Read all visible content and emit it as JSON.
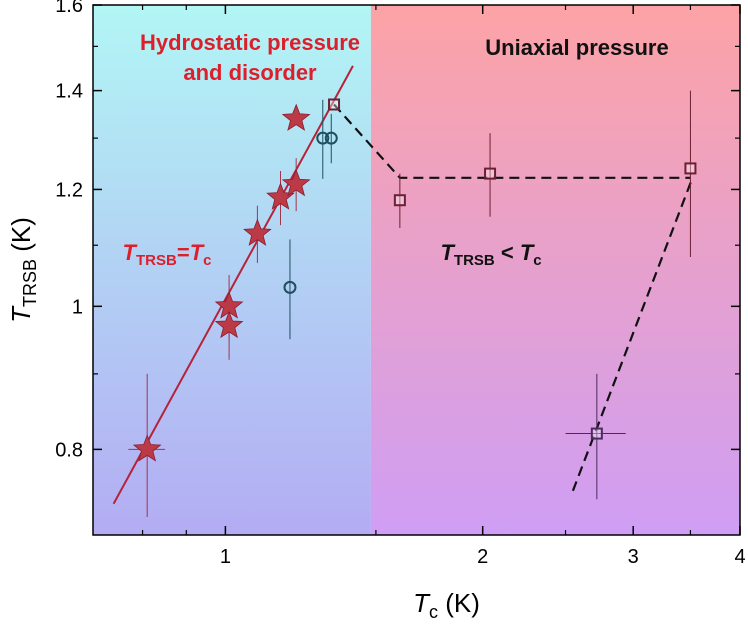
{
  "chart_data": {
    "type": "scatter",
    "xscale": "log",
    "yscale": "log",
    "xlim": [
      0.7,
      4.0
    ],
    "ylim": [
      0.7,
      1.6
    ],
    "xticks": [
      1,
      2,
      3,
      4
    ],
    "yticks": [
      0.8,
      1.0,
      1.2,
      1.4,
      1.6
    ],
    "ytick_labels": [
      "0.8",
      "1",
      "1.2",
      "1.4",
      "1.6"
    ],
    "xlabel": {
      "main": "T",
      "sub": "c",
      "unit": " (K)"
    },
    "ylabel": {
      "main": "T",
      "sub": "TRSB",
      "unit": " (K)"
    },
    "regions": [
      {
        "title_lines": [
          "Hydrostatic pressure",
          "and disorder"
        ],
        "title_color": "#dd1f2b",
        "x_range": [
          0.7,
          1.48
        ],
        "top_color": "#b2f6f5",
        "bottom_color": "#b3acf3"
      },
      {
        "title_lines": [
          "Uniaxial pressure"
        ],
        "title_color": "#111111",
        "x_range": [
          1.48,
          4.0
        ],
        "top_color": "#fda3a6",
        "bottom_color": "#cf9ef5"
      }
    ],
    "annotations": [
      {
        "main1": "T",
        "sub1": "TRSB",
        "op": "=",
        "main2": "T",
        "sub2": "c",
        "color": "#dd1f2b",
        "at_x": 0.758,
        "at_y": 1.075
      },
      {
        "main1": "T",
        "sub1": "TRSB",
        "op": " < ",
        "main2": "T",
        "sub2": "c",
        "color": "#111111",
        "at_x": 1.785,
        "at_y": 1.075
      }
    ],
    "fit_line": {
      "x": [
        0.74,
        1.41
      ],
      "y": [
        0.735,
        1.455
      ],
      "color": "#b5233b"
    },
    "series": [
      {
        "marker": "star",
        "color": "#bc3a46",
        "points": [
          {
            "x": 0.81,
            "y": 0.8,
            "yerr": [
              0.08,
              0.1
            ],
            "xerr": [
              0.04,
              0.04
            ]
          },
          {
            "x": 1.01,
            "y": 1.0,
            "yerr": [
              0.05,
              0.05
            ]
          },
          {
            "x": 1.01,
            "y": 0.97,
            "yerr": [
              0.05,
              0.05
            ]
          },
          {
            "x": 1.09,
            "y": 1.12,
            "yerr": [
              0.05,
              0.05
            ]
          },
          {
            "x": 1.16,
            "y": 1.185,
            "yerr": [
              0.05,
              0.05
            ]
          },
          {
            "x": 1.21,
            "y": 1.21,
            "yerr": [
              0.05,
              0.05
            ]
          },
          {
            "x": 1.21,
            "y": 1.34,
            "yerr": [
              0.0,
              0.0
            ]
          }
        ]
      },
      {
        "marker": "circle",
        "color": "#1e4f5e",
        "points": [
          {
            "x": 1.19,
            "y": 1.03,
            "yerr": [
              0.08,
              0.08
            ]
          },
          {
            "x": 1.3,
            "y": 1.3,
            "yerr": [
              0.08,
              0.08
            ]
          },
          {
            "x": 1.33,
            "y": 1.3,
            "yerr": [
              0.05,
              0.05
            ]
          }
        ]
      },
      {
        "marker": "square",
        "color": "#6b2033",
        "points": [
          {
            "x": 1.34,
            "y": 1.37,
            "yerr": [
              0.0,
              0.0
            ]
          },
          {
            "x": 1.6,
            "y": 1.18,
            "yerr": [
              0.05,
              0.05
            ]
          },
          {
            "x": 2.04,
            "y": 1.23,
            "yerr": [
              0.08,
              0.08
            ]
          },
          {
            "x": 3.5,
            "y": 1.24,
            "yerr": [
              0.16,
              0.16
            ]
          }
        ]
      },
      {
        "marker": "square",
        "color": "#4b2a5e",
        "points": [
          {
            "x": 2.72,
            "y": 0.82,
            "yerr": [
              0.08,
              0.08
            ],
            "xerr": [
              0.22,
              0.22
            ]
          }
        ]
      }
    ],
    "dashed_lines": [
      {
        "x": [
          1.34,
          1.6,
          3.5
        ],
        "y": [
          1.37,
          1.222,
          1.222
        ]
      },
      {
        "x": [
          2.55,
          3.52
        ],
        "y": [
          0.75,
          1.222
        ]
      }
    ]
  }
}
